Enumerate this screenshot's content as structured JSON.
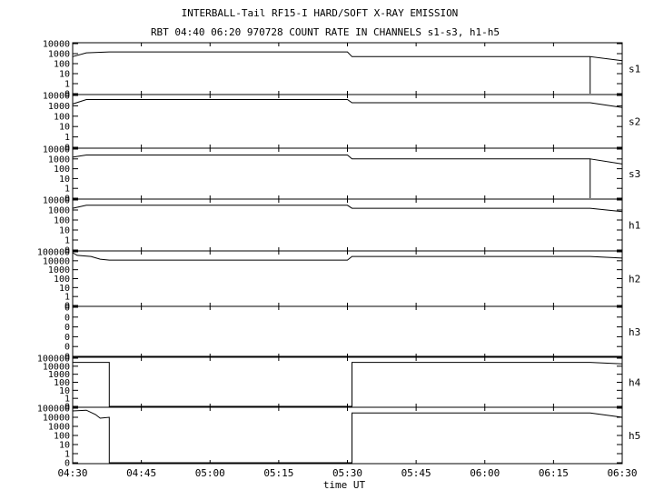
{
  "chart_data": {
    "type": "line",
    "title": "INTERBALL-Tail RF15-I HARD/SOFT X-RAY EMISSION",
    "subtitle": "RBT 04:40 06:20 970728  COUNT RATE IN CHANNELS s1-s3, h1-h5",
    "xlabel": "time UT",
    "x_ticks": [
      "04:30",
      "04:45",
      "05:00",
      "05:15",
      "05:30",
      "05:45",
      "06:00",
      "06:15",
      "06:30"
    ],
    "x_range": [
      "04:30",
      "06:30"
    ],
    "y_scale": "log",
    "grid": false,
    "panels": [
      {
        "name": "s1",
        "y_ticks": [
          "10000",
          "1000",
          "100",
          "10",
          "1",
          "0"
        ],
        "points": [
          [
            "04:30",
            500
          ],
          [
            "04:33",
            1200
          ],
          [
            "04:38",
            1500
          ],
          [
            "05:30",
            1500
          ],
          [
            "05:31",
            500
          ],
          [
            "06:23",
            500
          ],
          [
            "06:23",
            0
          ],
          [
            "06:23",
            500
          ],
          [
            "06:30",
            200
          ]
        ]
      },
      {
        "name": "s2",
        "y_ticks": [
          "10000",
          "1000",
          "100",
          "10",
          "1",
          "0"
        ],
        "points": [
          [
            "04:30",
            1500
          ],
          [
            "04:33",
            4000
          ],
          [
            "05:30",
            4000
          ],
          [
            "05:31",
            2000
          ],
          [
            "06:23",
            2000
          ],
          [
            "06:30",
            700
          ]
        ]
      },
      {
        "name": "s3",
        "y_ticks": [
          "10000",
          "1000",
          "100",
          "10",
          "1",
          "0"
        ],
        "points": [
          [
            "04:30",
            1500
          ],
          [
            "04:33",
            2500
          ],
          [
            "05:30",
            2500
          ],
          [
            "05:31",
            1000
          ],
          [
            "06:23",
            1000
          ],
          [
            "06:23",
            0
          ],
          [
            "06:23",
            1000
          ],
          [
            "06:30",
            300
          ]
        ]
      },
      {
        "name": "h1",
        "y_ticks": [
          "10000",
          "1000",
          "100",
          "10",
          "1",
          "0"
        ],
        "points": [
          [
            "04:30",
            1500
          ],
          [
            "04:33",
            3000
          ],
          [
            "05:30",
            3000
          ],
          [
            "05:31",
            1500
          ],
          [
            "06:23",
            1500
          ],
          [
            "06:30",
            700
          ]
        ]
      },
      {
        "name": "h2",
        "y_ticks": [
          "100000",
          "10000",
          "1000",
          "100",
          "10",
          "1",
          "0"
        ],
        "points": [
          [
            "04:30",
            80000
          ],
          [
            "04:31",
            40000
          ],
          [
            "04:34",
            30000
          ],
          [
            "04:36",
            15000
          ],
          [
            "04:38",
            12000
          ],
          [
            "04:38",
            12000
          ],
          [
            "05:30",
            12000
          ],
          [
            "05:31",
            30000
          ],
          [
            "06:23",
            30000
          ],
          [
            "06:30",
            20000
          ]
        ]
      },
      {
        "name": "h3",
        "y_ticks": [
          "0",
          "0",
          "0",
          "0",
          "0",
          "0"
        ],
        "points": [
          [
            "04:30",
            0
          ],
          [
            "06:30",
            0
          ]
        ]
      },
      {
        "name": "h4",
        "y_ticks": [
          "100000",
          "10000",
          "1000",
          "100",
          "10",
          "1",
          "0"
        ],
        "points": [
          [
            "04:30",
            30000
          ],
          [
            "04:38",
            30000
          ],
          [
            "04:38",
            0
          ],
          [
            "05:31",
            0
          ],
          [
            "05:31",
            30000
          ],
          [
            "06:23",
            30000
          ],
          [
            "06:30",
            20000
          ]
        ]
      },
      {
        "name": "h5",
        "y_ticks": [
          "100000",
          "10000",
          "1000",
          "100",
          "10",
          "1",
          "0"
        ],
        "points": [
          [
            "04:30",
            50000
          ],
          [
            "04:33",
            60000
          ],
          [
            "04:35",
            20000
          ],
          [
            "04:36",
            8000
          ],
          [
            "04:38",
            10000
          ],
          [
            "04:38",
            0
          ],
          [
            "05:31",
            0
          ],
          [
            "05:31",
            30000
          ],
          [
            "06:23",
            30000
          ],
          [
            "06:30",
            10000
          ]
        ]
      }
    ]
  }
}
